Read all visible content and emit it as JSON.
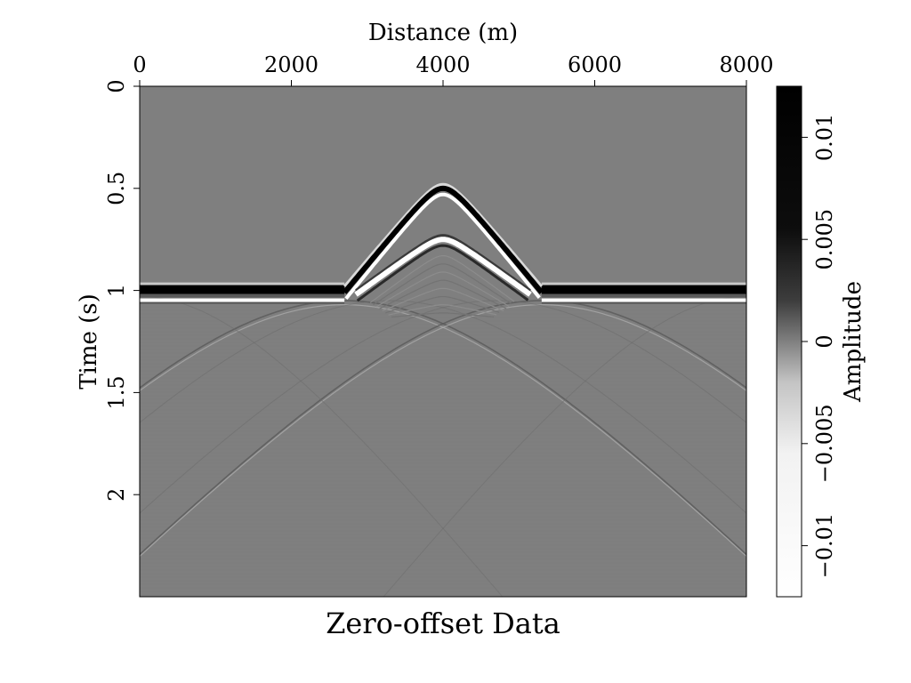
{
  "chart_data": {
    "type": "heatmap",
    "title": "Zero-offset Data",
    "xlabel": "Distance (m)",
    "ylabel": "Time (s)",
    "x_axis_position": "top",
    "xlim": [
      0,
      8000
    ],
    "ylim": [
      0,
      2.5
    ],
    "y_inverted": true,
    "x_ticks": [
      0,
      2000,
      4000,
      6000,
      8000
    ],
    "x_tick_labels": [
      "0",
      "2000",
      "4000",
      "6000",
      "8000"
    ],
    "y_ticks": [
      0,
      0.5,
      1,
      1.5,
      2
    ],
    "y_tick_labels": [
      "0",
      "0.5",
      "1",
      "1.5",
      "2"
    ],
    "colormap": "grayscale (white = negative, black = positive)",
    "colorbar": {
      "label": "Amplitude",
      "range": [
        -0.0125,
        0.0125
      ],
      "ticks": [
        -0.01,
        -0.005,
        0,
        0.005,
        0.01
      ],
      "tick_labels": [
        "−0.01",
        "−0.005",
        "0",
        "0.005",
        "0.01"
      ]
    },
    "features": {
      "flat_reflector_time_s": 1.0,
      "flat_reflector_gap_x_m": [
        2700,
        5300
      ],
      "dome_apex_x_m": 4000,
      "dome_apex_times_s": [
        0.5,
        0.75
      ],
      "dome_flank_end_time_s": 1.05
    }
  }
}
